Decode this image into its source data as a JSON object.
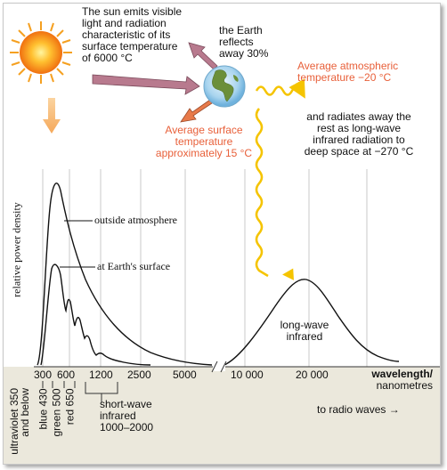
{
  "sun": {
    "caption": [
      "The sun emits visible",
      "light and radiation",
      "characteristic of its",
      "surface temperature",
      "of 6000 °C"
    ]
  },
  "earth": {
    "reflect": [
      "the Earth",
      "reflects",
      "away 30%"
    ],
    "atmospheric_temp": [
      "Average atmospheric",
      "temperature −20 °C"
    ],
    "surface_temp": [
      "Average surface",
      "temperature",
      "approximately 15 °C"
    ],
    "radiates": [
      "and radiates away the",
      "rest as long-wave",
      "infrared radiation to",
      "deep space at −270 °C"
    ]
  },
  "chart": {
    "ylabel": "relative power density",
    "curve_labels": {
      "outside": "outside atmosphere",
      "surface": "at Earth's surface",
      "longwave": [
        "long-wave",
        "infrared"
      ]
    },
    "ticks": [
      "300",
      "600",
      "1200",
      "2500",
      "5000",
      "10 000",
      "20 000"
    ],
    "xlabel": [
      "wavelength/",
      "nanometres"
    ]
  },
  "bands": {
    "ultraviolet": [
      "ultraviolet 350",
      "and below"
    ],
    "blue": "blue 430",
    "green": "green 500",
    "red": "red 650",
    "shortwave": [
      "short-wave",
      "infrared",
      "1000–2000"
    ],
    "radio": "to radio waves →"
  },
  "colors": {
    "bg_top": "#ffffff",
    "bg_bottom": "#ebe8dc",
    "arrow_fill": "#b87a8e",
    "orange_text": "#e8603a",
    "wave": "#f5c400"
  }
}
